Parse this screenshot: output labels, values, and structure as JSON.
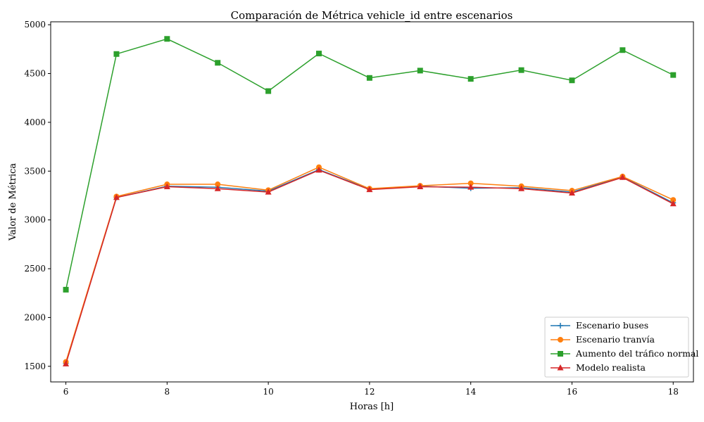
{
  "chart_data": {
    "type": "line",
    "title": "Comparación de Métrica vehicle_id entre escenarios",
    "xlabel": "Horas [h]",
    "ylabel": "Valor de Métrica",
    "xlim": [
      5.7,
      18.4
    ],
    "ylim": [
      1340,
      5030
    ],
    "xticks": [
      6,
      8,
      10,
      12,
      14,
      16,
      18
    ],
    "yticks": [
      1500,
      2000,
      2500,
      3000,
      3500,
      4000,
      4500,
      5000
    ],
    "grid": false,
    "legend_position": "lower right",
    "x": [
      6,
      7,
      8,
      9,
      10,
      11,
      12,
      13,
      14,
      15,
      16,
      17,
      18
    ],
    "series": [
      {
        "name": "Escenario buses",
        "marker": "plus",
        "color": "#1f77b4",
        "values": [
          1530,
          3230,
          3345,
          3335,
          3295,
          3515,
          3315,
          3345,
          3325,
          3330,
          3285,
          3440,
          3175
        ]
      },
      {
        "name": "Escenario tranvía",
        "marker": "circle",
        "color": "#ff7f0e",
        "values": [
          1545,
          3240,
          3365,
          3365,
          3305,
          3540,
          3320,
          3350,
          3375,
          3345,
          3300,
          3445,
          3205
        ]
      },
      {
        "name": "Aumento del tráfico normal",
        "marker": "square",
        "color": "#2ca02c",
        "values": [
          2285,
          4700,
          4855,
          4610,
          4320,
          4705,
          4455,
          4530,
          4445,
          4535,
          4430,
          4740,
          4485
        ]
      },
      {
        "name": "Modelo realista",
        "marker": "triangle",
        "color": "#d62728",
        "values": [
          1525,
          3230,
          3340,
          3320,
          3285,
          3510,
          3310,
          3340,
          3335,
          3320,
          3275,
          3435,
          3165
        ]
      }
    ]
  }
}
